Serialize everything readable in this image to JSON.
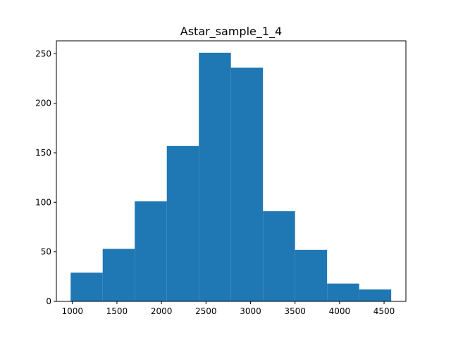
{
  "chart_data": {
    "type": "bar",
    "title": "Astar_sample_1_4",
    "xlabel": "",
    "ylabel": "",
    "xlim": [
      820,
      4745
    ],
    "ylim": [
      0,
      263
    ],
    "bins": [
      {
        "x0": 980,
        "x1": 1340,
        "count": 29
      },
      {
        "x0": 1340,
        "x1": 1700,
        "count": 53
      },
      {
        "x0": 1700,
        "x1": 2060,
        "count": 101
      },
      {
        "x0": 2060,
        "x1": 2420,
        "count": 157
      },
      {
        "x0": 2420,
        "x1": 2780,
        "count": 251
      },
      {
        "x0": 2780,
        "x1": 3140,
        "count": 236
      },
      {
        "x0": 3140,
        "x1": 3500,
        "count": 91
      },
      {
        "x0": 3500,
        "x1": 3860,
        "count": 52
      },
      {
        "x0": 3860,
        "x1": 4220,
        "count": 18
      },
      {
        "x0": 4220,
        "x1": 4580,
        "count": 12
      }
    ],
    "x_ticks": [
      1000,
      1500,
      2000,
      2500,
      3000,
      3500,
      4000,
      4500
    ],
    "y_ticks": [
      0,
      50,
      100,
      150,
      200,
      250
    ],
    "bar_color": "#1f77b4",
    "grid": false
  }
}
